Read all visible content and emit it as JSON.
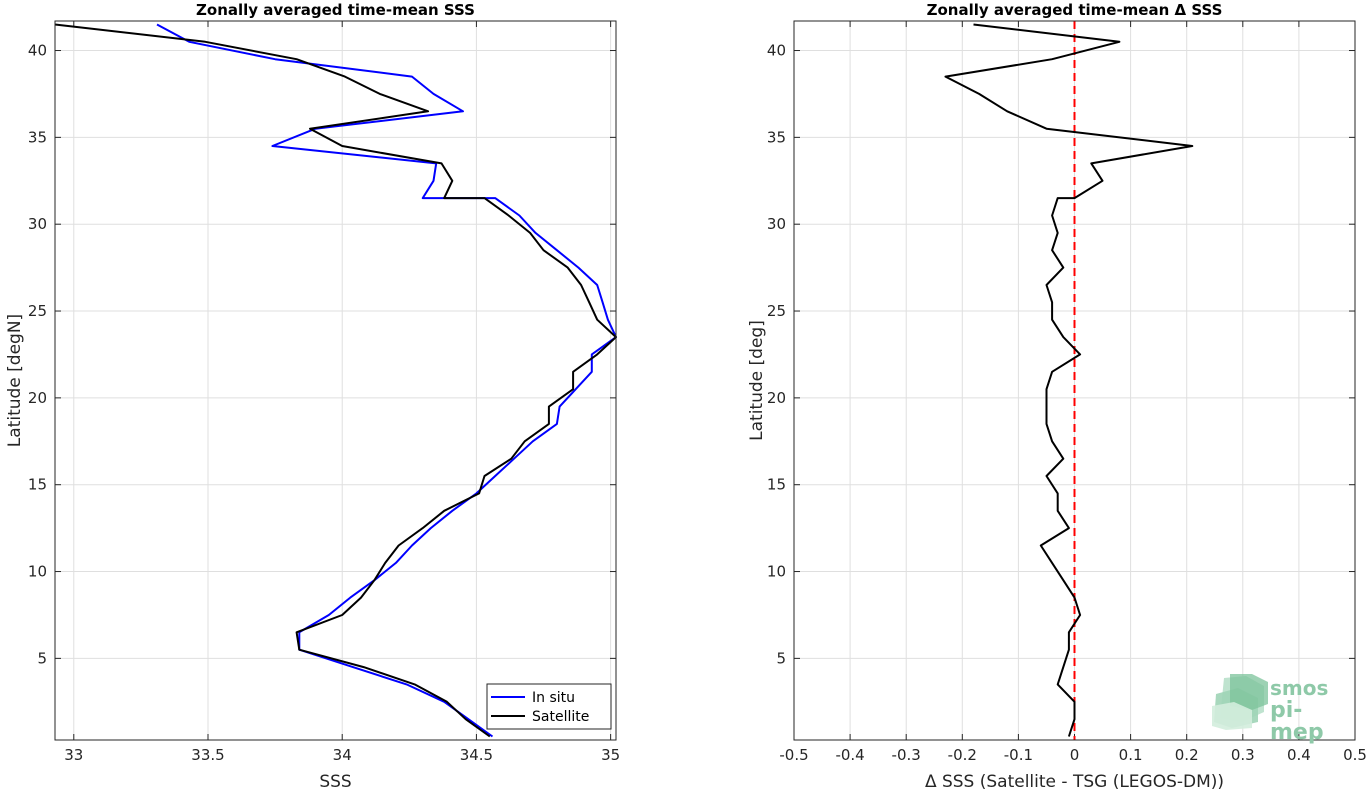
{
  "chart_data": [
    {
      "type": "line",
      "title": "Zonally averaged time-mean SSS",
      "xlabel": "SSS",
      "ylabel": "Latitude [degN]",
      "xlim": [
        32.93,
        35.02
      ],
      "ylim": [
        0.3,
        41.7
      ],
      "xticks": [
        "33",
        "33.5",
        "34",
        "34.5",
        "35"
      ],
      "yticks": [
        "5",
        "10",
        "15",
        "20",
        "25",
        "30",
        "35",
        "40"
      ],
      "grid": true,
      "legend": "bottom-right",
      "series": [
        {
          "name": "In situ",
          "color": "#0000ff",
          "points": [
            [
              34.56,
              0.5
            ],
            [
              34.47,
              1.5
            ],
            [
              34.38,
              2.5
            ],
            [
              34.24,
              3.5
            ],
            [
              34.04,
              4.5
            ],
            [
              33.84,
              5.5
            ],
            [
              33.84,
              6.5
            ],
            [
              33.95,
              7.5
            ],
            [
              34.03,
              8.5
            ],
            [
              34.12,
              9.5
            ],
            [
              34.2,
              10.5
            ],
            [
              34.26,
              11.5
            ],
            [
              34.33,
              12.5
            ],
            [
              34.41,
              13.5
            ],
            [
              34.5,
              14.5
            ],
            [
              34.57,
              15.5
            ],
            [
              34.64,
              16.5
            ],
            [
              34.71,
              17.5
            ],
            [
              34.8,
              18.5
            ],
            [
              34.81,
              19.5
            ],
            [
              34.87,
              20.5
            ],
            [
              34.93,
              21.5
            ],
            [
              34.93,
              22.5
            ],
            [
              35.02,
              23.5
            ],
            [
              34.99,
              24.5
            ],
            [
              34.97,
              25.5
            ],
            [
              34.95,
              26.5
            ],
            [
              34.88,
              27.5
            ],
            [
              34.8,
              28.5
            ],
            [
              34.72,
              29.5
            ],
            [
              34.66,
              30.5
            ],
            [
              34.57,
              31.5
            ],
            [
              34.3,
              31.5
            ],
            [
              34.34,
              32.5
            ],
            [
              34.35,
              33.5
            ],
            [
              33.74,
              34.5
            ],
            [
              33.9,
              35.5
            ],
            [
              34.45,
              36.5
            ],
            [
              34.34,
              37.5
            ],
            [
              34.26,
              38.5
            ],
            [
              33.75,
              39.5
            ],
            [
              33.43,
              40.5
            ],
            [
              33.31,
              41.5
            ]
          ]
        },
        {
          "name": "Satellite",
          "color": "#000000",
          "points": [
            [
              34.55,
              0.5
            ],
            [
              34.46,
              1.5
            ],
            [
              34.39,
              2.5
            ],
            [
              34.27,
              3.5
            ],
            [
              34.08,
              4.5
            ],
            [
              33.84,
              5.5
            ],
            [
              33.83,
              6.5
            ],
            [
              34.0,
              7.5
            ],
            [
              34.07,
              8.5
            ],
            [
              34.12,
              9.5
            ],
            [
              34.16,
              10.5
            ],
            [
              34.21,
              11.5
            ],
            [
              34.3,
              12.5
            ],
            [
              34.38,
              13.5
            ],
            [
              34.51,
              14.5
            ],
            [
              34.53,
              15.5
            ],
            [
              34.63,
              16.5
            ],
            [
              34.68,
              17.5
            ],
            [
              34.77,
              18.5
            ],
            [
              34.77,
              19.5
            ],
            [
              34.86,
              20.5
            ],
            [
              34.86,
              21.5
            ],
            [
              34.95,
              22.5
            ],
            [
              35.02,
              23.5
            ],
            [
              34.95,
              24.5
            ],
            [
              34.92,
              25.5
            ],
            [
              34.89,
              26.5
            ],
            [
              34.84,
              27.5
            ],
            [
              34.75,
              28.5
            ],
            [
              34.7,
              29.5
            ],
            [
              34.62,
              30.5
            ],
            [
              34.53,
              31.5
            ],
            [
              34.38,
              31.5
            ],
            [
              34.41,
              32.5
            ],
            [
              34.37,
              33.5
            ],
            [
              34.0,
              34.5
            ],
            [
              33.88,
              35.5
            ],
            [
              34.32,
              36.5
            ],
            [
              34.14,
              37.5
            ],
            [
              34.01,
              38.5
            ],
            [
              33.83,
              39.5
            ],
            [
              33.49,
              40.5
            ],
            [
              32.93,
              41.5
            ]
          ]
        }
      ]
    },
    {
      "type": "line",
      "title": "Zonally averaged time-mean Δ SSS",
      "xlabel": "Δ SSS (Satellite - TSG (LEGOS-DM))",
      "ylabel": "Latitude [deg]",
      "xlim": [
        -0.5,
        0.5
      ],
      "ylim": [
        0.3,
        41.7
      ],
      "xticks": [
        "-0.5",
        "-0.4",
        "-0.3",
        "-0.2",
        "-0.1",
        "0",
        "0.1",
        "0.2",
        "0.3",
        "0.4",
        "0.5"
      ],
      "yticks": [
        "5",
        "10",
        "15",
        "20",
        "25",
        "30",
        "35",
        "40"
      ],
      "grid": true,
      "zero_line_color": "#ff0000",
      "series": [
        {
          "color": "#000000",
          "points": [
            [
              -0.01,
              0.5
            ],
            [
              0.0,
              1.5
            ],
            [
              0.0,
              2.5
            ],
            [
              -0.03,
              3.5
            ],
            [
              -0.02,
              4.5
            ],
            [
              -0.01,
              5.5
            ],
            [
              -0.01,
              6.5
            ],
            [
              0.01,
              7.5
            ],
            [
              0.0,
              8.5
            ],
            [
              -0.02,
              9.5
            ],
            [
              -0.04,
              10.5
            ],
            [
              -0.06,
              11.5
            ],
            [
              -0.01,
              12.5
            ],
            [
              -0.03,
              13.5
            ],
            [
              -0.03,
              14.5
            ],
            [
              -0.05,
              15.5
            ],
            [
              -0.02,
              16.5
            ],
            [
              -0.04,
              17.5
            ],
            [
              -0.05,
              18.5
            ],
            [
              -0.05,
              19.5
            ],
            [
              -0.05,
              20.5
            ],
            [
              -0.04,
              21.5
            ],
            [
              0.01,
              22.5
            ],
            [
              -0.02,
              23.5
            ],
            [
              -0.04,
              24.5
            ],
            [
              -0.04,
              25.5
            ],
            [
              -0.05,
              26.5
            ],
            [
              -0.02,
              27.5
            ],
            [
              -0.04,
              28.5
            ],
            [
              -0.03,
              29.5
            ],
            [
              -0.04,
              30.5
            ],
            [
              -0.03,
              31.5
            ],
            [
              0.0,
              31.5
            ],
            [
              0.05,
              32.5
            ],
            [
              0.03,
              33.5
            ],
            [
              0.21,
              34.5
            ],
            [
              -0.05,
              35.5
            ],
            [
              -0.12,
              36.5
            ],
            [
              -0.17,
              37.5
            ],
            [
              -0.23,
              38.5
            ],
            [
              -0.04,
              39.5
            ],
            [
              0.08,
              40.5
            ],
            [
              -0.18,
              41.5
            ]
          ]
        }
      ]
    }
  ],
  "logo": {
    "line1": "smos",
    "line2": "pi-mep",
    "color": "#8ec9a8"
  }
}
